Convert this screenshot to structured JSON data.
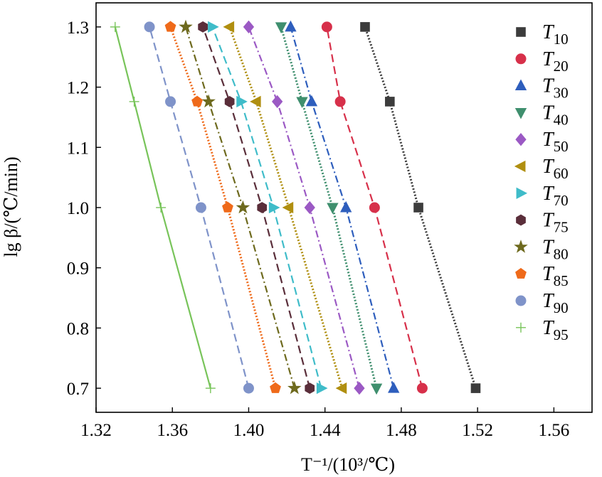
{
  "chart_data": {
    "type": "scatter",
    "xlabel": "T⁻¹/(10³/℃)",
    "ylabel": "lg β/(℃/min)",
    "xlim": [
      1.32,
      1.58
    ],
    "ylim": [
      0.66,
      1.34
    ],
    "xticks": [
      1.32,
      1.36,
      1.4,
      1.44,
      1.48,
      1.52,
      1.56
    ],
    "yticks": [
      0.7,
      0.8,
      0.9,
      1.0,
      1.1,
      1.2,
      1.3
    ],
    "xtick_labels": [
      "1.32",
      "1.36",
      "1.40",
      "1.44",
      "1.48",
      "1.52",
      "1.56"
    ],
    "ytick_labels": [
      "0.7",
      "0.8",
      "0.9",
      "1.0",
      "1.1",
      "1.2",
      "1.3"
    ],
    "grid": false,
    "legend_position": "right",
    "y": [
      0.7,
      1.0,
      1.176,
      1.3
    ],
    "series": [
      {
        "name": "T10",
        "legend_main": "T",
        "legend_sub": "10",
        "color": "#3c3c3c",
        "marker": "square",
        "line": "dotted",
        "x": [
          1.519,
          1.489,
          1.474,
          1.461
        ]
      },
      {
        "name": "T20",
        "legend_main": "T",
        "legend_sub": "20",
        "color": "#d7304a",
        "marker": "circle",
        "line": "dashed",
        "x": [
          1.491,
          1.466,
          1.448,
          1.441
        ]
      },
      {
        "name": "T30",
        "legend_main": "T",
        "legend_sub": "30",
        "color": "#2e5ebd",
        "marker": "triangle-up",
        "line": "dashdot",
        "x": [
          1.476,
          1.451,
          1.433,
          1.422
        ]
      },
      {
        "name": "T40",
        "legend_main": "T",
        "legend_sub": "40",
        "color": "#3f8f6e",
        "marker": "triangle-down",
        "line": "dotted",
        "x": [
          1.467,
          1.444,
          1.428,
          1.417
        ]
      },
      {
        "name": "T50",
        "legend_main": "T",
        "legend_sub": "50",
        "color": "#9b59c4",
        "marker": "diamond",
        "line": "dashdot",
        "x": [
          1.458,
          1.432,
          1.415,
          1.4
        ]
      },
      {
        "name": "T60",
        "legend_main": "T",
        "legend_sub": "60",
        "color": "#b08f10",
        "marker": "triangle-left",
        "line": "dotted",
        "x": [
          1.449,
          1.421,
          1.404,
          1.39
        ]
      },
      {
        "name": "T70",
        "legend_main": "T",
        "legend_sub": "70",
        "color": "#3fbcc9",
        "marker": "triangle-right",
        "line": "dashed",
        "x": [
          1.438,
          1.413,
          1.396,
          1.381
        ]
      },
      {
        "name": "T75",
        "legend_main": "T",
        "legend_sub": "75",
        "color": "#5a2e3a",
        "marker": "hexagon",
        "line": "dashed",
        "x": [
          1.432,
          1.407,
          1.39,
          1.376
        ]
      },
      {
        "name": "T80",
        "legend_main": "T",
        "legend_sub": "80",
        "color": "#6e6a1e",
        "marker": "star",
        "line": "dashdot",
        "x": [
          1.424,
          1.397,
          1.379,
          1.367
        ]
      },
      {
        "name": "T85",
        "legend_main": "T",
        "legend_sub": "85",
        "color": "#ef6a1a",
        "marker": "pentagon",
        "line": "dotted",
        "x": [
          1.414,
          1.389,
          1.373,
          1.359
        ]
      },
      {
        "name": "T90",
        "legend_main": "T",
        "legend_sub": "90",
        "color": "#7f93c9",
        "marker": "circle",
        "line": "dashed",
        "x": [
          1.4,
          1.375,
          1.359,
          1.348
        ]
      },
      {
        "name": "T95",
        "legend_main": "T",
        "legend_sub": "95",
        "color": "#78c45a",
        "marker": "plus",
        "line": "solid",
        "x": [
          1.38,
          1.354,
          1.34,
          1.33
        ]
      }
    ]
  }
}
